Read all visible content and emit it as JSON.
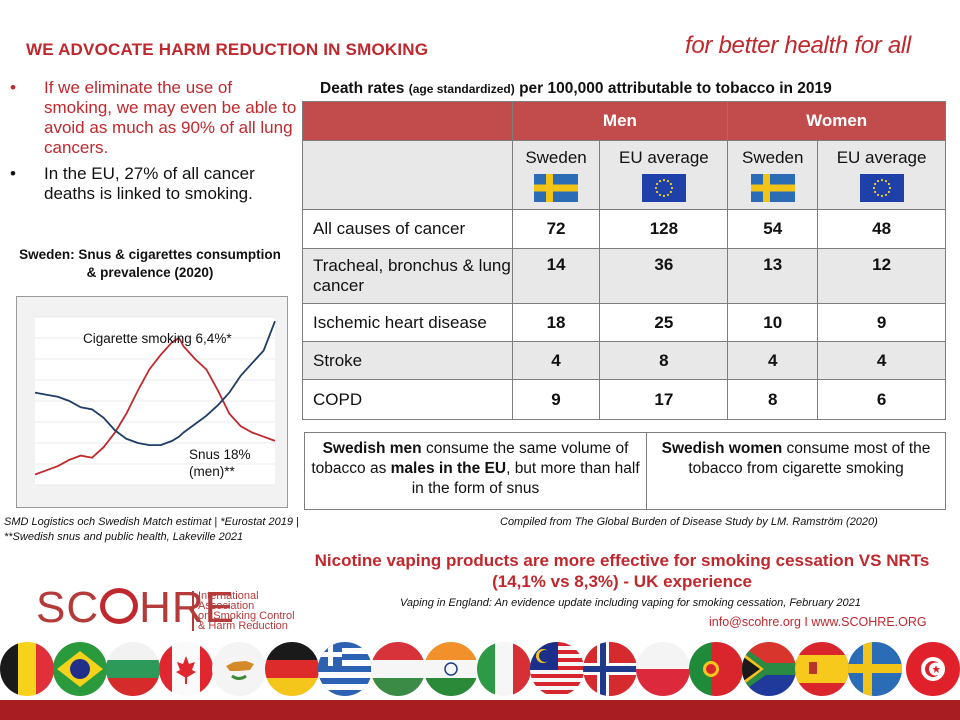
{
  "header": {
    "title": "WE ADVOCATE HARM REDUCTION IN SMOKING",
    "tagline": "for better health for all"
  },
  "bullets": [
    {
      "marker": "•",
      "text": "If we eliminate the use of smoking, we may even be able to avoid as much as 90% of all lung cancers.",
      "color": "#c0282d"
    },
    {
      "marker": "•",
      "text": "In the EU, 27% of all cancer deaths is linked to smoking.",
      "color": "#111111"
    }
  ],
  "snus_chart": {
    "title": "Sweden: Snus & cigarettes consumption & prevalence (2020)",
    "cig_label": "Cigarette smoking 6,4%*",
    "snus_label_line1": "Snus 18%",
    "snus_label_line2": "(men)**",
    "source": "SMD Logistics och Swedish Match estimat | *Eurostat 2019 | **Swedish snus and public health, Lakeville 2021"
  },
  "chart_data": {
    "type": "line",
    "series": [
      {
        "color": "#c0282d",
        "x": [
          1915,
          1920,
          1925,
          1930,
          1935,
          1940,
          1945,
          1950,
          1955,
          1960,
          1965,
          1970,
          1975,
          1978,
          1980,
          1985,
          1990,
          1995,
          2000,
          2005,
          2010,
          2015,
          2020
        ],
        "values": [
          5,
          7,
          9,
          12,
          14,
          13,
          18,
          25,
          34,
          45,
          55,
          62,
          68,
          70,
          66,
          60,
          55,
          45,
          34,
          28,
          25,
          23,
          21
        ]
      },
      {
        "color": "#1f3d66",
        "x": [
          1915,
          1920,
          1925,
          1930,
          1935,
          1940,
          1945,
          1950,
          1955,
          1960,
          1965,
          1970,
          1975,
          1978,
          1980,
          1985,
          1990,
          1995,
          2000,
          2005,
          2010,
          2015,
          2020
        ],
        "values": [
          44,
          43,
          42,
          40,
          37,
          36,
          32,
          26,
          22,
          20,
          19,
          19,
          21,
          23,
          25,
          29,
          33,
          38,
          44,
          52,
          58,
          64,
          78
        ]
      }
    ],
    "xlim": [
      1915,
      2020
    ],
    "ylim": [
      0,
      80
    ]
  },
  "table": {
    "title_main_pre": "Death rates ",
    "title_small": "(age standardized)",
    "title_main_post": " per 100,000 attributable to tobacco in 2019",
    "group_headers": [
      "Men",
      "Women"
    ],
    "sub_headers": [
      "Sweden",
      "EU average",
      "Sweden",
      "EU average"
    ],
    "flags": [
      "sweden-flag",
      "eu-flag",
      "sweden-flag",
      "eu-flag"
    ],
    "rows": [
      {
        "label": "All causes of cancer",
        "values": [
          "72",
          "128",
          "54",
          "48"
        ]
      },
      {
        "label": "Tracheal, bronchus & lung cancer",
        "values": [
          "14",
          "36",
          "13",
          "12"
        ]
      },
      {
        "label": "Ischemic heart disease",
        "values": [
          "18",
          "25",
          "10",
          "9"
        ]
      },
      {
        "label": "Stroke",
        "values": [
          "4",
          "8",
          "4",
          "4"
        ]
      },
      {
        "label": "COPD",
        "values": [
          "9",
          "17",
          "8",
          "6"
        ]
      }
    ]
  },
  "compare": {
    "men_bold": "Swedish men",
    "men_text1": " consume the same volume of tobacco as ",
    "men_bold2": "males in the EU",
    "men_text2": ", but more than half in the form of snus",
    "women_bold": "Swedish women",
    "women_text": " consume most of the tobacco from cigarette smoking"
  },
  "compiled": "Compiled from The Global Burden of Disease Study by LM. Ramström (2020)",
  "vaping": {
    "line1": "Nicotine vaping products are more effective for smoking cessation VS NRTs",
    "line2": "(14,1% vs 8,3%) - UK experience",
    "source": "Vaping in England: An evidence update including vaping for smoking cessation, February 2021"
  },
  "contact": "info@scohre.org I www.SCOHRE.ORG",
  "logo": {
    "word_pre": "SC",
    "word_post": "HRE",
    "sub": [
      "International",
      "Association",
      "on Smoking Control",
      "& Harm Reduction"
    ]
  },
  "flags_row": [
    "belgium-flag",
    "brazil-flag",
    "bulgaria-flag",
    "canada-flag",
    "cyprus-flag",
    "germany-flag",
    "greece-flag",
    "hungary-flag",
    "india-flag",
    "italy-flag",
    "malaysia-flag",
    "norway-flag",
    "poland-flag",
    "portugal-flag",
    "south-africa-flag",
    "spain-flag",
    "sweden-flag",
    "tunisia-flag"
  ],
  "colors": {
    "accent": "#c0282d",
    "table_header": "#c24b4b",
    "bar": "#a81d21"
  }
}
